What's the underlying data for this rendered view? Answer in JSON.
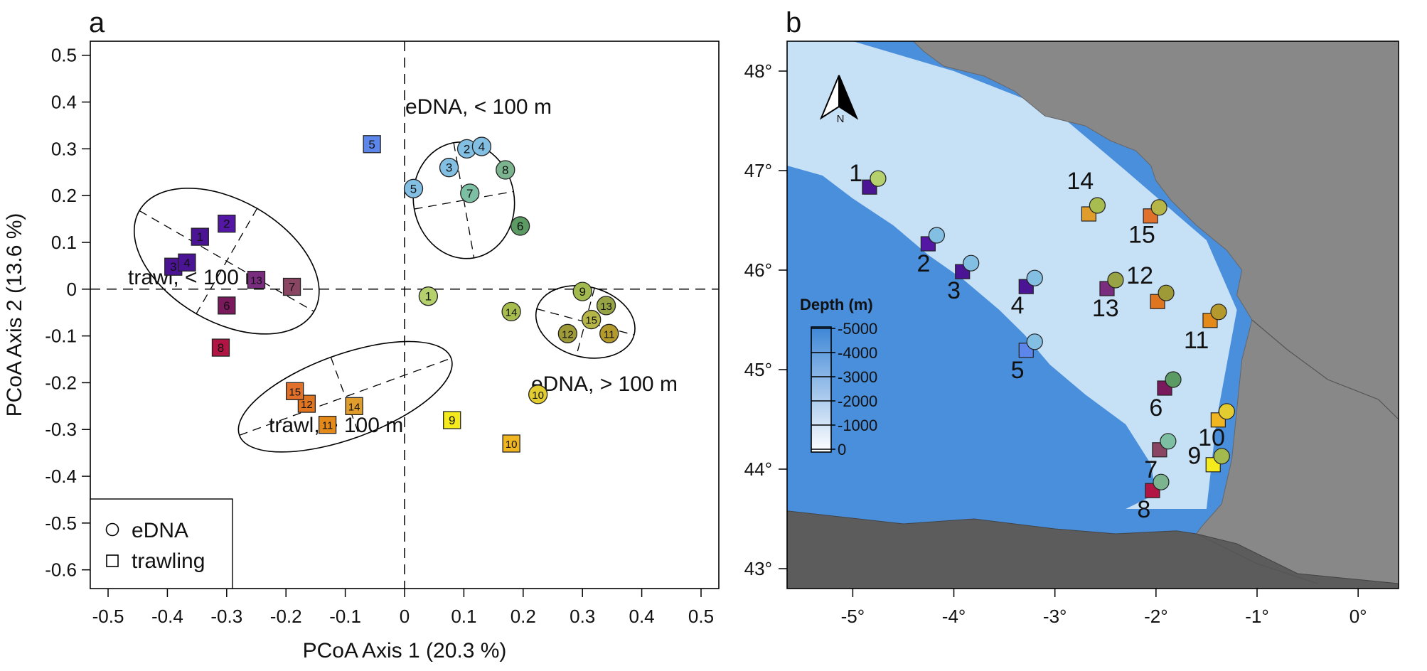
{
  "panel_a": {
    "label": "a",
    "chart_data": {
      "type": "scatter",
      "xlabel": "PCoA Axis 1 (20.3 %)",
      "ylabel": "PCoA Axis 2 (13.6 %)",
      "xlim": [
        -0.53,
        0.53
      ],
      "ylim": [
        -0.64,
        0.53
      ],
      "x_ticks": [
        -0.5,
        -0.4,
        -0.3,
        -0.2,
        -0.1,
        0,
        0.1,
        0.2,
        0.3,
        0.4,
        0.5
      ],
      "x_tick_labels": [
        "-0.5",
        "-0.4",
        "-0.3",
        "-0.2",
        "-0.1",
        "0",
        "0.1",
        "0.2",
        "0.3",
        "0.4",
        "0.5"
      ],
      "y_ticks": [
        0.5,
        0.4,
        0.3,
        0.2,
        0.1,
        0,
        -0.1,
        -0.2,
        -0.3,
        -0.4,
        -0.5,
        -0.6
      ],
      "y_tick_labels": [
        "0.5",
        "0.4",
        "0.3",
        "0.2",
        "0.1",
        "0",
        "-0.1",
        "-0.2",
        "-0.3",
        "-0.4",
        "-0.5",
        "-0.6"
      ],
      "zero_lines": true,
      "legend": {
        "placement": "bottom-left",
        "entries": [
          {
            "label": "eDNA",
            "shape": "circle"
          },
          {
            "label": "trawling",
            "shape": "square"
          }
        ]
      },
      "ellipses": [
        {
          "label": "eDNA, < 100 m",
          "center": [
            0.1,
            0.19
          ],
          "semi_axes": [
            0.085,
            0.125
          ],
          "angle_deg": -10
        },
        {
          "label": "eDNA, > 100 m",
          "center": [
            0.305,
            -0.07
          ],
          "semi_axes": [
            0.085,
            0.075
          ],
          "angle_deg": 15
        },
        {
          "label": "trawl, < 100 m",
          "center": [
            -0.3,
            0.06
          ],
          "semi_axes": [
            0.17,
            0.13
          ],
          "angle_deg": 30
        },
        {
          "label": "trawl, > 100 m",
          "center": [
            -0.1,
            -0.23
          ],
          "semi_axes": [
            0.19,
            0.09
          ],
          "angle_deg": -20
        }
      ],
      "series": [
        {
          "name": "eDNA",
          "shape": "circle",
          "points": [
            {
              "id": "1",
              "x": 0.04,
              "y": -0.015,
              "color": "#b5d16e"
            },
            {
              "id": "2",
              "x": 0.105,
              "y": 0.3,
              "color": "#83bee3"
            },
            {
              "id": "3",
              "x": 0.075,
              "y": 0.26,
              "color": "#83bee3"
            },
            {
              "id": "4",
              "x": 0.13,
              "y": 0.305,
              "color": "#83bee3"
            },
            {
              "id": "5",
              "x": 0.015,
              "y": 0.215,
              "color": "#83bee3"
            },
            {
              "id": "6",
              "x": 0.195,
              "y": 0.135,
              "color": "#5b9a63"
            },
            {
              "id": "7",
              "x": 0.11,
              "y": 0.205,
              "color": "#7cbfa2"
            },
            {
              "id": "8",
              "x": 0.17,
              "y": 0.255,
              "color": "#7cb490"
            },
            {
              "id": "9",
              "x": 0.3,
              "y": -0.005,
              "color": "#a3ba4e"
            },
            {
              "id": "10",
              "x": 0.225,
              "y": -0.225,
              "color": "#e2cc30"
            },
            {
              "id": "11",
              "x": 0.345,
              "y": -0.095,
              "color": "#b49a2d"
            },
            {
              "id": "12",
              "x": 0.275,
              "y": -0.095,
              "color": "#9e9a38"
            },
            {
              "id": "13",
              "x": 0.34,
              "y": -0.035,
              "color": "#97a345"
            },
            {
              "id": "14",
              "x": 0.18,
              "y": -0.048,
              "color": "#a8bd50"
            },
            {
              "id": "15",
              "x": 0.315,
              "y": -0.065,
              "color": "#b5b548"
            }
          ]
        },
        {
          "name": "trawling",
          "shape": "square",
          "points": [
            {
              "id": "1",
              "x": -0.345,
              "y": 0.112,
              "color": "#4a1494"
            },
            {
              "id": "2",
              "x": -0.3,
              "y": 0.14,
              "color": "#5417a3"
            },
            {
              "id": "3",
              "x": -0.39,
              "y": 0.048,
              "color": "#4a1494"
            },
            {
              "id": "4",
              "x": -0.367,
              "y": 0.057,
              "color": "#4a1494"
            },
            {
              "id": "5",
              "x": -0.055,
              "y": 0.31,
              "color": "#5c86ea"
            },
            {
              "id": "6",
              "x": -0.3,
              "y": -0.035,
              "color": "#7a1a5c"
            },
            {
              "id": "7",
              "x": -0.19,
              "y": 0.005,
              "color": "#8a4563"
            },
            {
              "id": "8",
              "x": -0.31,
              "y": -0.125,
              "color": "#b01543"
            },
            {
              "id": "9",
              "x": 0.08,
              "y": -0.28,
              "color": "#f4ea1c"
            },
            {
              "id": "10",
              "x": 0.18,
              "y": -0.33,
              "color": "#f0b622"
            },
            {
              "id": "11",
              "x": -0.13,
              "y": -0.29,
              "color": "#e48a1b"
            },
            {
              "id": "12",
              "x": -0.165,
              "y": -0.245,
              "color": "#e07520"
            },
            {
              "id": "13",
              "x": -0.25,
              "y": 0.02,
              "color": "#7a2c7e"
            },
            {
              "id": "14",
              "x": -0.085,
              "y": -0.25,
              "color": "#e19d2b"
            },
            {
              "id": "15",
              "x": -0.185,
              "y": -0.218,
              "color": "#e0702a"
            }
          ]
        }
      ]
    }
  },
  "panel_b": {
    "label": "b",
    "chart_data": {
      "type": "scatter",
      "xlim": [
        -5.65,
        0.4
      ],
      "ylim": [
        42.8,
        48.3
      ],
      "x_ticks": [
        -5,
        -4,
        -3,
        -2,
        -1,
        0
      ],
      "x_tick_labels": [
        "-5°",
        "-4°",
        "-3°",
        "-2°",
        "-1°",
        "0°"
      ],
      "y_ticks": [
        43,
        44,
        45,
        46,
        47,
        48
      ],
      "y_tick_labels": [
        "43°",
        "44°",
        "45°",
        "46°",
        "47°",
        "48°"
      ],
      "north_arrow_label": "N",
      "depth_legend": {
        "title": "Depth (m)",
        "labels": [
          "-5000",
          "-4000",
          "-3000",
          "-2000",
          "-1000",
          "0"
        ]
      },
      "colors": {
        "land": "#888888",
        "deep": "#4a8fdc",
        "shelf": "#c6e0f6"
      },
      "stations": [
        {
          "id": "1",
          "lon": -4.75,
          "lat": 46.92,
          "edna_color": "#b5d16e",
          "trawl_color": "#4a1494",
          "label_lon": -4.97,
          "label_lat": 46.98
        },
        {
          "id": "2",
          "lon": -4.17,
          "lat": 46.35,
          "edna_color": "#83bee3",
          "trawl_color": "#5417a3",
          "label_lon": -4.3,
          "label_lat": 46.07
        },
        {
          "id": "3",
          "lon": -3.83,
          "lat": 46.07,
          "edna_color": "#83bee3",
          "trawl_color": "#4a1494",
          "label_lon": -4.0,
          "label_lat": 45.8
        },
        {
          "id": "4",
          "lon": -3.2,
          "lat": 45.92,
          "edna_color": "#83bee3",
          "trawl_color": "#4a1494",
          "label_lon": -3.37,
          "label_lat": 45.65
        },
        {
          "id": "5",
          "lon": -3.2,
          "lat": 45.28,
          "edna_color": "#83bee3",
          "trawl_color": "#5c86ea",
          "label_lon": -3.37,
          "label_lat": 45.0
        },
        {
          "id": "6",
          "lon": -1.83,
          "lat": 44.9,
          "edna_color": "#5b9a63",
          "trawl_color": "#7a1a5c",
          "label_lon": -2.0,
          "label_lat": 44.62
        },
        {
          "id": "7",
          "lon": -1.88,
          "lat": 44.28,
          "edna_color": "#7cbfa2",
          "trawl_color": "#8a4563",
          "label_lon": -2.05,
          "label_lat": 44.0
        },
        {
          "id": "8",
          "lon": -1.95,
          "lat": 43.87,
          "edna_color": "#7cb490",
          "trawl_color": "#b01543",
          "label_lon": -2.12,
          "label_lat": 43.6
        },
        {
          "id": "9",
          "lon": -1.35,
          "lat": 44.13,
          "edna_color": "#a3ba4e",
          "trawl_color": "#f4ea1c",
          "label_lon": -1.62,
          "label_lat": 44.14
        },
        {
          "id": "10",
          "lon": -1.3,
          "lat": 44.58,
          "edna_color": "#e2cc30",
          "trawl_color": "#f0b622",
          "label_lon": -1.45,
          "label_lat": 44.32
        },
        {
          "id": "11",
          "lon": -1.38,
          "lat": 45.58,
          "edna_color": "#b49a2d",
          "trawl_color": "#e48a1b",
          "label_lon": -1.6,
          "label_lat": 45.3
        },
        {
          "id": "12",
          "lon": -1.9,
          "lat": 45.77,
          "edna_color": "#9e9a38",
          "trawl_color": "#e07520",
          "label_lon": -2.16,
          "label_lat": 45.95
        },
        {
          "id": "13",
          "lon": -2.4,
          "lat": 45.9,
          "edna_color": "#97a345",
          "trawl_color": "#7a2c7e",
          "label_lon": -2.5,
          "label_lat": 45.62
        },
        {
          "id": "14",
          "lon": -2.58,
          "lat": 46.65,
          "edna_color": "#a8bd50",
          "trawl_color": "#e19d2b",
          "label_lon": -2.75,
          "label_lat": 46.9
        },
        {
          "id": "15",
          "lon": -1.97,
          "lat": 46.63,
          "edna_color": "#b5b548",
          "trawl_color": "#e0702a",
          "label_lon": -2.14,
          "label_lat": 46.36
        }
      ]
    }
  }
}
